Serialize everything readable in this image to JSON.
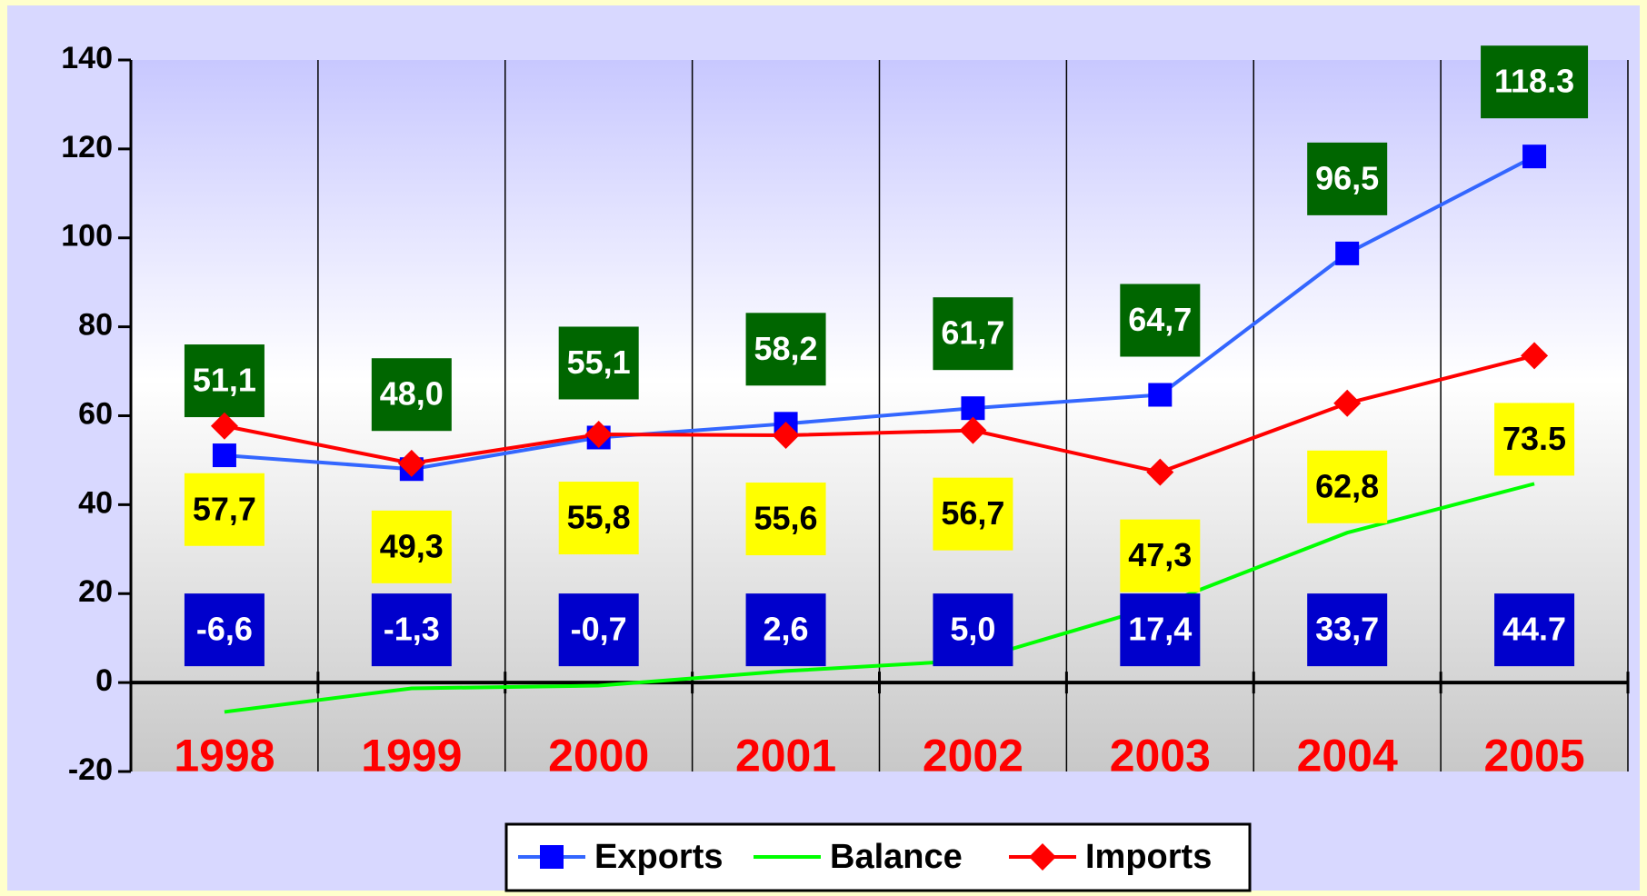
{
  "chart_data": {
    "type": "line",
    "categories": [
      "1998",
      "1999",
      "2000",
      "2001",
      "2002",
      "2003",
      "2004",
      "2005"
    ],
    "series": [
      {
        "name": "Exports",
        "color": "#3366ff",
        "marker_color": "#0000ff",
        "marker": "square",
        "values": [
          51.1,
          48.0,
          55.1,
          58.2,
          61.7,
          64.7,
          96.5,
          118.3
        ],
        "value_labels": [
          "51,1",
          "48,0",
          "55,1",
          "58,2",
          "61,7",
          "64,7",
          "96,5",
          "118.3"
        ]
      },
      {
        "name": "Balance",
        "color": "#00ff00",
        "marker": "none",
        "values": [
          -6.6,
          -1.3,
          -0.7,
          2.6,
          5.0,
          17.4,
          33.7,
          44.7
        ],
        "value_labels": [
          "-6,6",
          "-1,3",
          "-0,7",
          "2,6",
          "5,0",
          "17,4",
          "33,7",
          "44.7"
        ]
      },
      {
        "name": "Imports",
        "color": "#ff0000",
        "marker_color": "#ff0000",
        "marker": "diamond",
        "values": [
          57.7,
          49.3,
          55.8,
          55.6,
          56.7,
          47.3,
          62.8,
          73.5
        ],
        "value_labels": [
          "57,7",
          "49,3",
          "55,8",
          "55,6",
          "56,7",
          "47,3",
          "62,8",
          "73.5"
        ]
      }
    ],
    "ylim": [
      -20,
      140
    ],
    "yticks": [
      -20,
      0,
      20,
      40,
      60,
      80,
      100,
      120,
      140
    ],
    "grid": true
  }
}
